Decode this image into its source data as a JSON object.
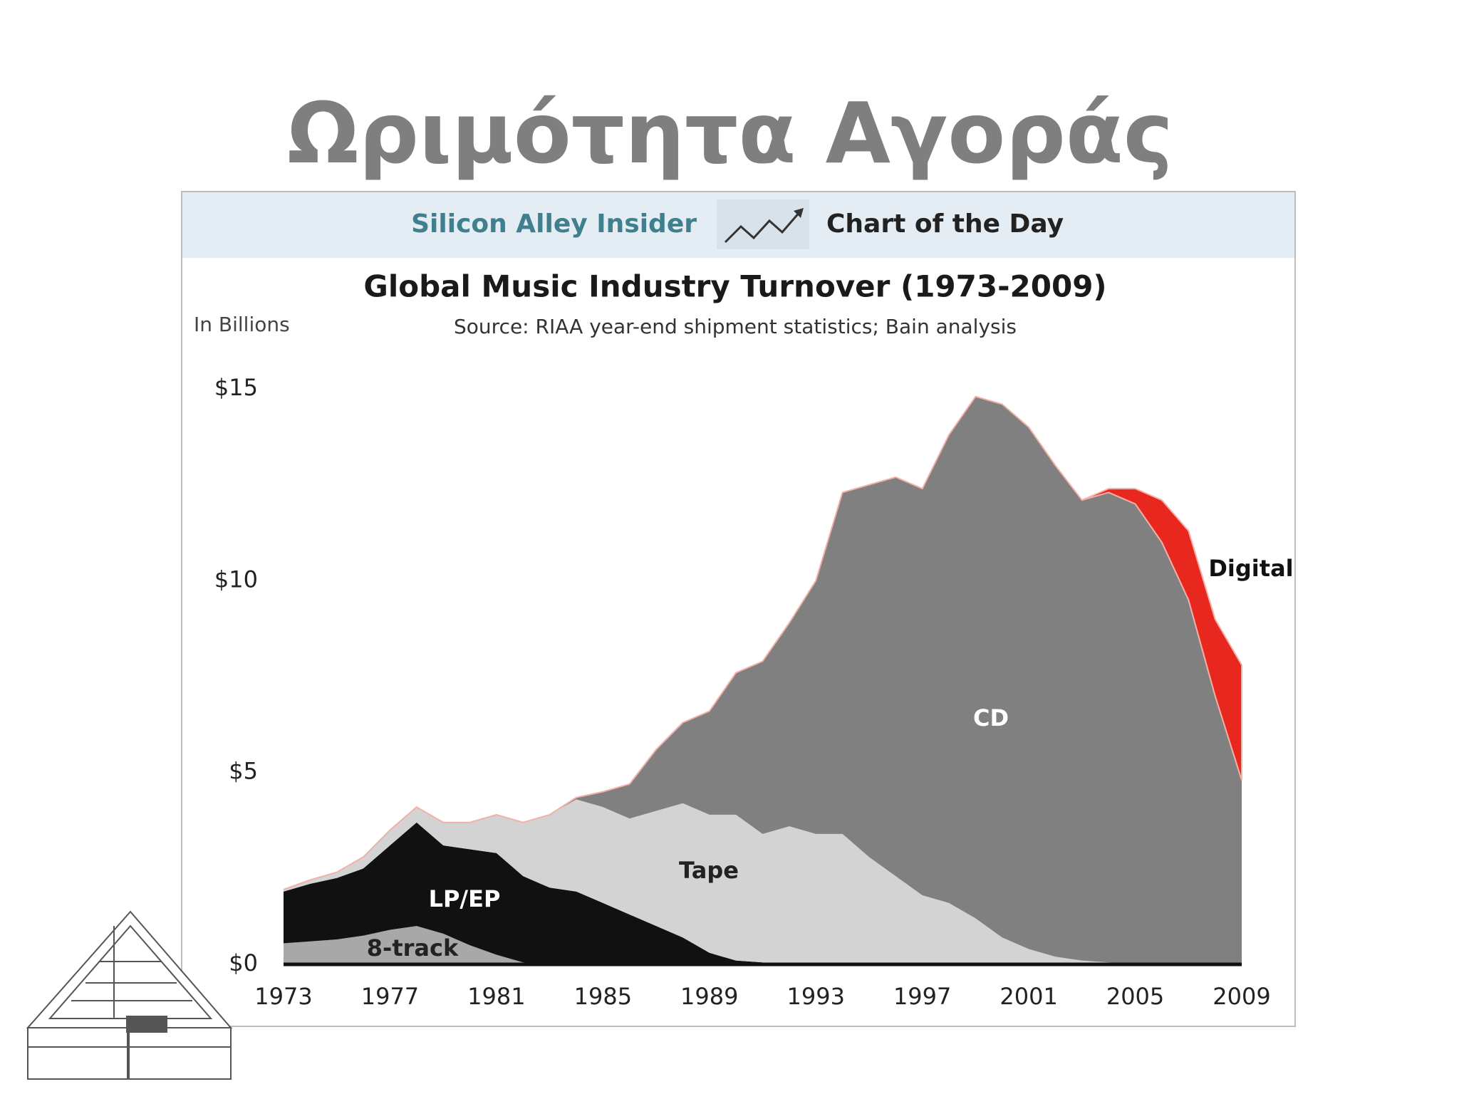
{
  "slide_title": "Ωριμότητα Αγοράς",
  "chart_data": {
    "type": "stacked-area",
    "header_left": "Silicon Alley Insider",
    "header_right": "Chart of the Day",
    "title": "Global Music Industry Turnover (1973-2009)",
    "subtitle": "Source: RIAA year-end shipment statistics; Bain analysis",
    "y_label": "In Billions",
    "x": [
      1973,
      1974,
      1975,
      1976,
      1977,
      1978,
      1979,
      1980,
      1981,
      1982,
      1983,
      1984,
      1985,
      1986,
      1987,
      1988,
      1989,
      1990,
      1991,
      1992,
      1993,
      1994,
      1995,
      1996,
      1997,
      1998,
      1999,
      2000,
      2001,
      2002,
      2003,
      2004,
      2005,
      2006,
      2007,
      2008,
      2009
    ],
    "xlim": [
      1973,
      2009
    ],
    "xticks": [
      1973,
      1977,
      1981,
      1985,
      1989,
      1993,
      1997,
      2001,
      2005,
      2009
    ],
    "ylim": [
      0,
      15
    ],
    "yticks": [
      {
        "value": 0,
        "label": "$0"
      },
      {
        "value": 5,
        "label": "$5"
      },
      {
        "value": 10,
        "label": "$10"
      },
      {
        "value": 15,
        "label": "$15"
      }
    ],
    "series": [
      {
        "name": "8-track",
        "color": "#a8a8a8",
        "values": [
          0.55,
          0.6,
          0.65,
          0.75,
          0.9,
          1.0,
          0.8,
          0.5,
          0.25,
          0.05,
          0,
          0,
          0,
          0,
          0,
          0,
          0,
          0,
          0,
          0,
          0,
          0,
          0,
          0,
          0,
          0,
          0,
          0,
          0,
          0,
          0,
          0,
          0,
          0,
          0,
          0,
          0
        ]
      },
      {
        "name": "LP/EP",
        "color": "#111111",
        "values": [
          1.35,
          1.5,
          1.6,
          1.75,
          2.2,
          2.7,
          2.3,
          2.5,
          2.65,
          2.25,
          2.0,
          1.9,
          1.6,
          1.3,
          1.0,
          0.7,
          0.3,
          0.1,
          0.05,
          0,
          0,
          0,
          0,
          0,
          0,
          0,
          0,
          0,
          0,
          0,
          0,
          0,
          0,
          0,
          0,
          0,
          0
        ]
      },
      {
        "name": "Tape",
        "color": "#d3d3d3",
        "values": [
          0.05,
          0.1,
          0.15,
          0.3,
          0.4,
          0.4,
          0.6,
          0.7,
          1.0,
          1.4,
          1.9,
          2.4,
          2.5,
          2.5,
          3.0,
          3.5,
          3.6,
          3.8,
          3.35,
          3.6,
          3.4,
          3.4,
          2.8,
          2.3,
          1.8,
          1.6,
          1.2,
          0.7,
          0.4,
          0.2,
          0.1,
          0.05,
          0,
          0,
          0,
          0,
          0
        ]
      },
      {
        "name": "CD",
        "color": "#808080",
        "values": [
          0,
          0,
          0,
          0,
          0,
          0,
          0,
          0,
          0,
          0,
          0,
          0.05,
          0.4,
          0.9,
          1.6,
          2.1,
          2.7,
          3.7,
          4.5,
          5.3,
          6.6,
          8.9,
          9.7,
          10.4,
          10.6,
          12.2,
          13.6,
          13.9,
          13.6,
          12.8,
          12.0,
          12.25,
          12.0,
          11.0,
          9.5,
          7.0,
          4.8
        ]
      },
      {
        "name": "Digital",
        "color": "#e8281e",
        "values": [
          0,
          0,
          0,
          0,
          0,
          0,
          0,
          0,
          0,
          0,
          0,
          0,
          0,
          0,
          0,
          0,
          0,
          0,
          0,
          0,
          0,
          0,
          0,
          0,
          0,
          0,
          0,
          0,
          0,
          0,
          0,
          0.1,
          0.4,
          1.1,
          1.8,
          2.0,
          3.0
        ]
      }
    ]
  }
}
